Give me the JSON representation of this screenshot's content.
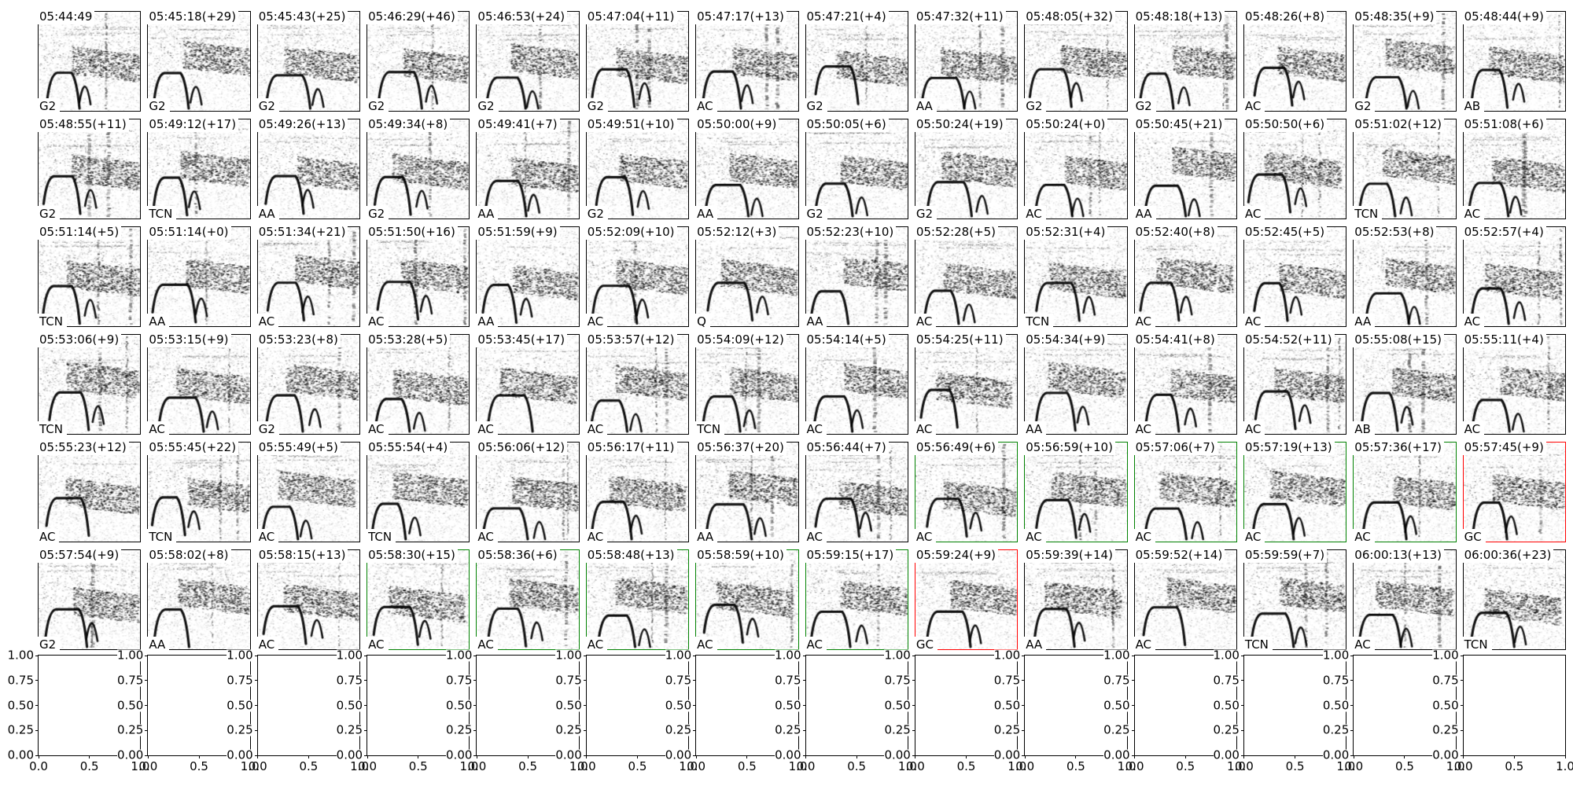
{
  "colors": {
    "spine": "#000000",
    "highlight_green": "#008000",
    "highlight_red": "#ff0000",
    "background": "#ffffff"
  },
  "chart_data": {
    "type": "heatmap",
    "description": "6x14 grid of grayscale spectrogram thumbnails, each titled with a timestamp and tagged with a class code; some cells outlined green or red; a row of 14 empty axes (0-1) at the bottom",
    "rows": 6,
    "cols": 14,
    "cells": [
      {
        "time": "05:44:49",
        "label": "G2",
        "highlight": "none"
      },
      {
        "time": "05:45:18(+29)",
        "label": "G2",
        "highlight": "none"
      },
      {
        "time": "05:45:43(+25)",
        "label": "G2",
        "highlight": "none"
      },
      {
        "time": "05:46:29(+46)",
        "label": "G2",
        "highlight": "none"
      },
      {
        "time": "05:46:53(+24)",
        "label": "G2",
        "highlight": "none"
      },
      {
        "time": "05:47:04(+11)",
        "label": "G2",
        "highlight": "none"
      },
      {
        "time": "05:47:17(+13)",
        "label": "AC",
        "highlight": "none"
      },
      {
        "time": "05:47:21(+4)",
        "label": "G2",
        "highlight": "none"
      },
      {
        "time": "05:47:32(+11)",
        "label": "AA",
        "highlight": "none"
      },
      {
        "time": "05:48:05(+32)",
        "label": "G2",
        "highlight": "none"
      },
      {
        "time": "05:48:18(+13)",
        "label": "G2",
        "highlight": "none"
      },
      {
        "time": "05:48:26(+8)",
        "label": "AC",
        "highlight": "none"
      },
      {
        "time": "05:48:35(+9)",
        "label": "G2",
        "highlight": "none"
      },
      {
        "time": "05:48:44(+9)",
        "label": "AB",
        "highlight": "none"
      },
      {
        "time": "05:48:55(+11)",
        "label": "G2",
        "highlight": "none"
      },
      {
        "time": "05:49:12(+17)",
        "label": "TCN",
        "highlight": "none"
      },
      {
        "time": "05:49:26(+13)",
        "label": "AA",
        "highlight": "none"
      },
      {
        "time": "05:49:34(+8)",
        "label": "G2",
        "highlight": "none"
      },
      {
        "time": "05:49:41(+7)",
        "label": "AA",
        "highlight": "none"
      },
      {
        "time": "05:49:51(+10)",
        "label": "G2",
        "highlight": "none"
      },
      {
        "time": "05:50:00(+9)",
        "label": "AA",
        "highlight": "none"
      },
      {
        "time": "05:50:05(+6)",
        "label": "G2",
        "highlight": "none"
      },
      {
        "time": "05:50:24(+19)",
        "label": "G2",
        "highlight": "none"
      },
      {
        "time": "05:50:24(+0)",
        "label": "AC",
        "highlight": "none"
      },
      {
        "time": "05:50:45(+21)",
        "label": "AA",
        "highlight": "none"
      },
      {
        "time": "05:50:50(+6)",
        "label": "AC",
        "highlight": "none"
      },
      {
        "time": "05:51:02(+12)",
        "label": "TCN",
        "highlight": "none"
      },
      {
        "time": "05:51:08(+6)",
        "label": "AC",
        "highlight": "none"
      },
      {
        "time": "05:51:14(+5)",
        "label": "TCN",
        "highlight": "none"
      },
      {
        "time": "05:51:14(+0)",
        "label": "AA",
        "highlight": "none"
      },
      {
        "time": "05:51:34(+21)",
        "label": "AC",
        "highlight": "none"
      },
      {
        "time": "05:51:50(+16)",
        "label": "AC",
        "highlight": "none"
      },
      {
        "time": "05:51:59(+9)",
        "label": "AA",
        "highlight": "none"
      },
      {
        "time": "05:52:09(+10)",
        "label": "AC",
        "highlight": "none"
      },
      {
        "time": "05:52:12(+3)",
        "label": "Q",
        "highlight": "none"
      },
      {
        "time": "05:52:23(+10)",
        "label": "AA",
        "highlight": "none"
      },
      {
        "time": "05:52:28(+5)",
        "label": "AC",
        "highlight": "none"
      },
      {
        "time": "05:52:31(+4)",
        "label": "TCN",
        "highlight": "none"
      },
      {
        "time": "05:52:40(+8)",
        "label": "AC",
        "highlight": "none"
      },
      {
        "time": "05:52:45(+5)",
        "label": "AC",
        "highlight": "none"
      },
      {
        "time": "05:52:53(+8)",
        "label": "AA",
        "highlight": "none"
      },
      {
        "time": "05:52:57(+4)",
        "label": "AC",
        "highlight": "none"
      },
      {
        "time": "05:53:06(+9)",
        "label": "TCN",
        "highlight": "none"
      },
      {
        "time": "05:53:15(+9)",
        "label": "AC",
        "highlight": "none"
      },
      {
        "time": "05:53:23(+8)",
        "label": "G2",
        "highlight": "none"
      },
      {
        "time": "05:53:28(+5)",
        "label": "AC",
        "highlight": "none"
      },
      {
        "time": "05:53:45(+17)",
        "label": "AC",
        "highlight": "none"
      },
      {
        "time": "05:53:57(+12)",
        "label": "AC",
        "highlight": "none"
      },
      {
        "time": "05:54:09(+12)",
        "label": "TCN",
        "highlight": "none"
      },
      {
        "time": "05:54:14(+5)",
        "label": "AC",
        "highlight": "none"
      },
      {
        "time": "05:54:25(+11)",
        "label": "AC",
        "highlight": "none"
      },
      {
        "time": "05:54:34(+9)",
        "label": "AA",
        "highlight": "none"
      },
      {
        "time": "05:54:41(+8)",
        "label": "AC",
        "highlight": "none"
      },
      {
        "time": "05:54:52(+11)",
        "label": "AC",
        "highlight": "none"
      },
      {
        "time": "05:55:08(+15)",
        "label": "AB",
        "highlight": "none"
      },
      {
        "time": "05:55:11(+4)",
        "label": "AC",
        "highlight": "none"
      },
      {
        "time": "05:55:23(+12)",
        "label": "AC",
        "highlight": "none"
      },
      {
        "time": "05:55:45(+22)",
        "label": "TCN",
        "highlight": "none"
      },
      {
        "time": "05:55:49(+5)",
        "label": "AC",
        "highlight": "none"
      },
      {
        "time": "05:55:54(+4)",
        "label": "TCN",
        "highlight": "none"
      },
      {
        "time": "05:56:06(+12)",
        "label": "AC",
        "highlight": "none"
      },
      {
        "time": "05:56:17(+11)",
        "label": "AC",
        "highlight": "none"
      },
      {
        "time": "05:56:37(+20)",
        "label": "AA",
        "highlight": "none"
      },
      {
        "time": "05:56:44(+7)",
        "label": "AC",
        "highlight": "none"
      },
      {
        "time": "05:56:49(+6)",
        "label": "AC",
        "highlight": "green"
      },
      {
        "time": "05:56:59(+10)",
        "label": "AC",
        "highlight": "green"
      },
      {
        "time": "05:57:06(+7)",
        "label": "AC",
        "highlight": "green"
      },
      {
        "time": "05:57:19(+13)",
        "label": "AC",
        "highlight": "green"
      },
      {
        "time": "05:57:36(+17)",
        "label": "AC",
        "highlight": "green"
      },
      {
        "time": "05:57:45(+9)",
        "label": "GC",
        "highlight": "red"
      },
      {
        "time": "05:57:54(+9)",
        "label": "G2",
        "highlight": "none"
      },
      {
        "time": "05:58:02(+8)",
        "label": "AA",
        "highlight": "none"
      },
      {
        "time": "05:58:15(+13)",
        "label": "AC",
        "highlight": "none"
      },
      {
        "time": "05:58:30(+15)",
        "label": "AC",
        "highlight": "green"
      },
      {
        "time": "05:58:36(+6)",
        "label": "AC",
        "highlight": "green"
      },
      {
        "time": "05:58:48(+13)",
        "label": "AC",
        "highlight": "green"
      },
      {
        "time": "05:58:59(+10)",
        "label": "AC",
        "highlight": "green"
      },
      {
        "time": "05:59:15(+17)",
        "label": "AC",
        "highlight": "green"
      },
      {
        "time": "05:59:24(+9)",
        "label": "GC",
        "highlight": "red"
      },
      {
        "time": "05:59:39(+14)",
        "label": "AA",
        "highlight": "none"
      },
      {
        "time": "05:59:52(+14)",
        "label": "AC",
        "highlight": "none"
      },
      {
        "time": "05:59:59(+7)",
        "label": "TCN",
        "highlight": "none"
      },
      {
        "time": "06:00:13(+13)",
        "label": "AC",
        "highlight": "none"
      },
      {
        "time": "06:00:36(+23)",
        "label": "TCN",
        "highlight": "none"
      }
    ],
    "empty_axes_row": {
      "count": 14,
      "ylim": [
        0.0,
        1.0
      ],
      "xlim": [
        0.0,
        1.0
      ],
      "y_ticks": [
        "1.00",
        "0.75",
        "0.50",
        "0.25",
        "0.00"
      ],
      "x_ticks": [
        "0.0",
        "0.5",
        "1.0"
      ],
      "grid": false
    }
  }
}
